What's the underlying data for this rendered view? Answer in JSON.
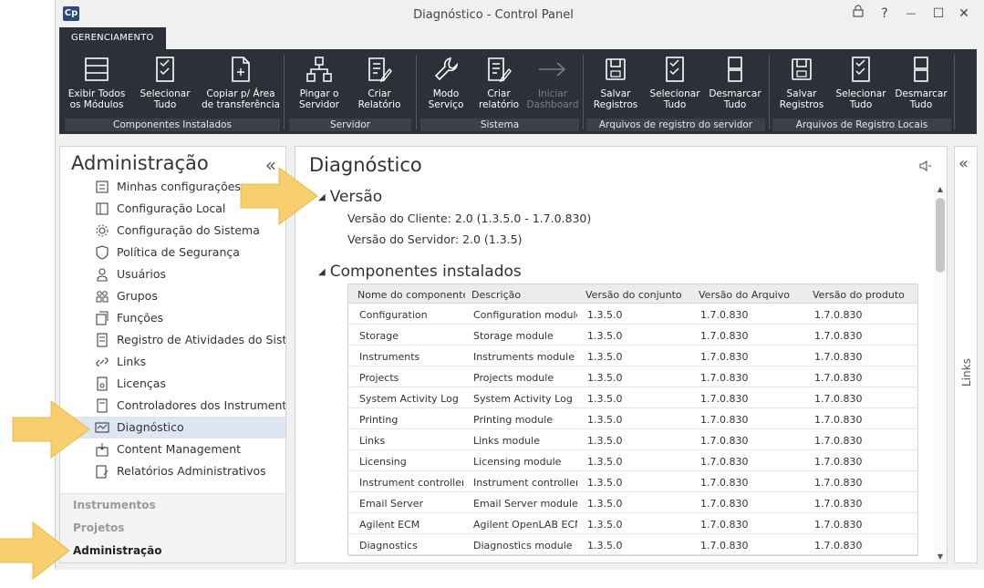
{
  "window": {
    "logo": "Cp",
    "title": "Diagnóstico - Control Panel",
    "lock_icon": "lock-icon",
    "help": "?",
    "minimize": "—",
    "maximize": "☐",
    "close": "✕"
  },
  "ribbon": {
    "tab": "GERENCIAMENTO",
    "groups": [
      {
        "caption": "Componentes Instalados",
        "buttons": [
          "Exibir Todos\nos Módulos",
          "Selecionar\nTudo",
          "Copiar p/ Área\nde transferência"
        ]
      },
      {
        "caption": "Servidor",
        "buttons": [
          "Pingar o\nServidor",
          "Criar\nRelatório"
        ]
      },
      {
        "caption": "Sistema",
        "buttons": [
          "Modo\nServiço",
          "Criar\nrelatório",
          "Iniciar\nDashboard"
        ]
      },
      {
        "caption": "Arquivos de registro do servidor",
        "buttons": [
          "Salvar\nRegistros",
          "Selecionar\nTudo",
          "Desmarcar\nTudo"
        ]
      },
      {
        "caption": "Arquivos de Registro Locais",
        "buttons": [
          "Salvar\nRegistros",
          "Selecionar\nTudo",
          "Desmarcar\nTudo"
        ]
      }
    ]
  },
  "nav": {
    "title": "Administração",
    "collapse": "«",
    "items": [
      {
        "label": "Minhas configurações",
        "icon": "settings-list-icon"
      },
      {
        "label": "Configuração Local",
        "icon": "local-config-icon"
      },
      {
        "label": "Configuração do Sistema",
        "icon": "system-gear-icon"
      },
      {
        "label": "Política de Segurança",
        "icon": "shield-icon"
      },
      {
        "label": "Usuários",
        "icon": "user-icon"
      },
      {
        "label": "Grupos",
        "icon": "group-icon"
      },
      {
        "label": "Funções",
        "icon": "roles-icon"
      },
      {
        "label": "Registro de Atividades do Sistema",
        "icon": "activity-log-icon"
      },
      {
        "label": "Links",
        "icon": "link-icon"
      },
      {
        "label": "Licenças",
        "icon": "license-icon"
      },
      {
        "label": "Controladores dos Instrumentos",
        "icon": "instrument-controller-icon"
      },
      {
        "label": "Diagnóstico",
        "icon": "diagnostics-icon"
      },
      {
        "label": "Content Management",
        "icon": "content-management-icon"
      },
      {
        "label": "Relatórios Administrativos",
        "icon": "admin-reports-icon"
      }
    ],
    "selected_index": 11,
    "sections": [
      "Instrumentos",
      "Projetos",
      "Administração"
    ]
  },
  "content": {
    "title": "Diagnóstico",
    "version_heading": "Versão",
    "client_version": "Versão do Cliente: 2.0 (1.3.5.0 - 1.7.0.830)",
    "server_version": "Versão do Servidor: 2.0 (1.3.5)",
    "components_heading": "Componentes instalados",
    "columns": [
      "Nome do componente",
      "Descrição",
      "Versão do conjunto",
      "Versão do Arquivo",
      "Versão do produto"
    ],
    "rows": [
      [
        "Configuration",
        "Configuration module",
        "1.3.5.0",
        "1.7.0.830",
        "1.7.0.830"
      ],
      [
        "Storage",
        "Storage module",
        "1.3.5.0",
        "1.7.0.830",
        "1.7.0.830"
      ],
      [
        "Instruments",
        "Instruments module",
        "1.3.5.0",
        "1.7.0.830",
        "1.7.0.830"
      ],
      [
        "Projects",
        "Projects module",
        "1.3.5.0",
        "1.7.0.830",
        "1.7.0.830"
      ],
      [
        "System Activity Log",
        "System Activity Log",
        "1.3.5.0",
        "1.7.0.830",
        "1.7.0.830"
      ],
      [
        "Printing",
        "Printing module",
        "1.3.5.0",
        "1.7.0.830",
        "1.7.0.830"
      ],
      [
        "Links",
        "Links module",
        "1.3.5.0",
        "1.7.0.830",
        "1.7.0.830"
      ],
      [
        "Licensing",
        "Licensing module",
        "1.3.5.0",
        "1.7.0.830",
        "1.7.0.830"
      ],
      [
        "Instrument controller",
        "Instrument controller",
        "1.3.5.0",
        "1.7.0.830",
        "1.7.0.830"
      ],
      [
        "Email Server",
        "Email Server module",
        "1.3.5.0",
        "1.7.0.830",
        "1.7.0.830"
      ],
      [
        "Agilent ECM",
        "Agilent OpenLAB ECM",
        "1.3.5.0",
        "1.7.0.830",
        "1.7.0.830"
      ],
      [
        "Diagnostics",
        "Diagnostics module",
        "1.3.5.0",
        "1.7.0.830",
        "1.7.0.830"
      ]
    ]
  },
  "links_pane": {
    "label": "Links",
    "collapse": "«"
  },
  "colors": {
    "ribbon": "#2d3038",
    "selected": "#dde6f2",
    "arrow": "#f7cf6e"
  }
}
